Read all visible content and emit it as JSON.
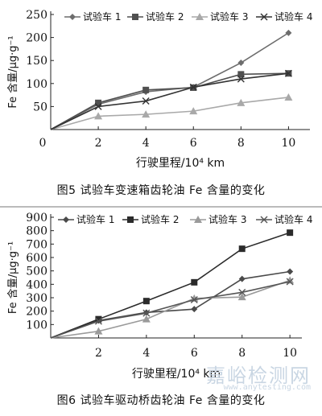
{
  "watermark": {
    "text": "嘉峪检测网",
    "url": "www.anytesting.com"
  },
  "chart_data": [
    {
      "type": "line",
      "title": "图5   试验车变速箱齿轮油 Fe 含量的变化",
      "xlabel": "行驶里程/10⁴ km",
      "ylabel": "Fe 含量/μg·g⁻¹",
      "x": [
        0,
        2,
        4,
        6,
        8,
        10
      ],
      "xticks": [
        "0",
        "2",
        "4",
        "6",
        "8",
        "10"
      ],
      "xlim": [
        0,
        10.9
      ],
      "ylim": [
        0,
        250
      ],
      "yticks": [
        "50",
        "100",
        "150",
        "200",
        "250"
      ],
      "legend": "top",
      "series": [
        {
          "name": "试验车 1",
          "marker": "diamond",
          "color": "#6d6d6d",
          "values": [
            0,
            55,
            82,
            92,
            145,
            210
          ]
        },
        {
          "name": "试验车 2",
          "marker": "square",
          "color": "#505050",
          "values": [
            0,
            58,
            86,
            91,
            120,
            122
          ]
        },
        {
          "name": "试验车 3",
          "marker": "triangle",
          "color": "#a9a9a9",
          "values": [
            0,
            29,
            33,
            40,
            58,
            70
          ]
        },
        {
          "name": "试验车 4",
          "marker": "cross",
          "color": "#333333",
          "values": [
            0,
            50,
            62,
            92,
            110,
            122
          ]
        }
      ]
    },
    {
      "type": "line",
      "title": "图6   试验车驱动桥齿轮油 Fe 含量的变化",
      "xlabel": "行驶里程/10⁴ km",
      "ylabel": "Fe 含量/μg·g⁻¹",
      "x": [
        0,
        2,
        4,
        6,
        8,
        10
      ],
      "xticks": [
        "2",
        "4",
        "6",
        "8",
        "10"
      ],
      "xlim": [
        0,
        10.5
      ],
      "ylim": [
        0,
        900
      ],
      "yticks": [
        "100",
        "200",
        "300",
        "400",
        "500",
        "600",
        "700",
        "800",
        "900"
      ],
      "legend": "top",
      "series": [
        {
          "name": "试验车 1",
          "marker": "diamond",
          "color": "#4a4a4a",
          "values": [
            0,
            130,
            190,
            215,
            440,
            495
          ]
        },
        {
          "name": "试验车 2",
          "marker": "square",
          "color": "#2b2b2b",
          "values": [
            0,
            140,
            275,
            415,
            665,
            785
          ]
        },
        {
          "name": "试验车 3",
          "marker": "triangle",
          "color": "#9a9a9a",
          "values": [
            0,
            50,
            140,
            295,
            305,
            430
          ]
        },
        {
          "name": "试验车 4",
          "marker": "cross",
          "color": "#555555",
          "values": [
            0,
            125,
            185,
            285,
            340,
            420
          ]
        }
      ]
    }
  ]
}
